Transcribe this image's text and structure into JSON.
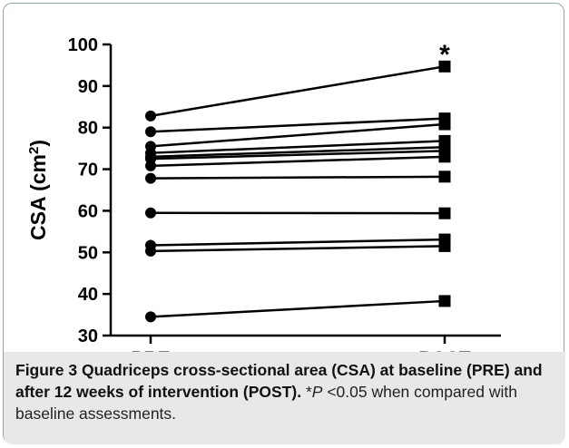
{
  "chart_data": {
    "type": "line",
    "title": "",
    "xlabel": "",
    "ylabel": "CSA (cm²)",
    "ylabel_parts": {
      "text": "CSA (cm",
      "sup": "2",
      "close": ")"
    },
    "categories": [
      "PRE",
      "POST"
    ],
    "ylim": [
      30,
      100
    ],
    "yticks": [
      30,
      40,
      50,
      60,
      70,
      80,
      90,
      100
    ],
    "grid": false,
    "legend": "none",
    "marker_pre": "circle",
    "marker_post": "square",
    "color": "#000000",
    "subjects": [
      {
        "values": [
          82.8,
          94.7
        ]
      },
      {
        "values": [
          79.0,
          82.2
        ]
      },
      {
        "values": [
          75.5,
          80.8
        ]
      },
      {
        "values": [
          73.9,
          76.8
        ]
      },
      {
        "values": [
          73.0,
          75.3
        ]
      },
      {
        "values": [
          72.5,
          74.4
        ]
      },
      {
        "values": [
          70.8,
          73.0
        ]
      },
      {
        "values": [
          67.8,
          68.2
        ]
      },
      {
        "values": [
          59.5,
          59.4
        ]
      },
      {
        "values": [
          51.7,
          53.1
        ]
      },
      {
        "values": [
          50.3,
          51.5
        ]
      },
      {
        "values": [
          34.5,
          38.3
        ]
      }
    ],
    "annotations": [
      {
        "text": "*",
        "category": "POST",
        "value": 98.5
      }
    ]
  },
  "caption": {
    "label": "Figure 3",
    "title": "Quadriceps cross-sectional area (CSA) at baseline (PRE) and after 12 weeks of intervention (POST).",
    "note_prefix": "*",
    "p_symbol": "P",
    "note_rest": " <0.05 when compared with baseline assessments."
  }
}
